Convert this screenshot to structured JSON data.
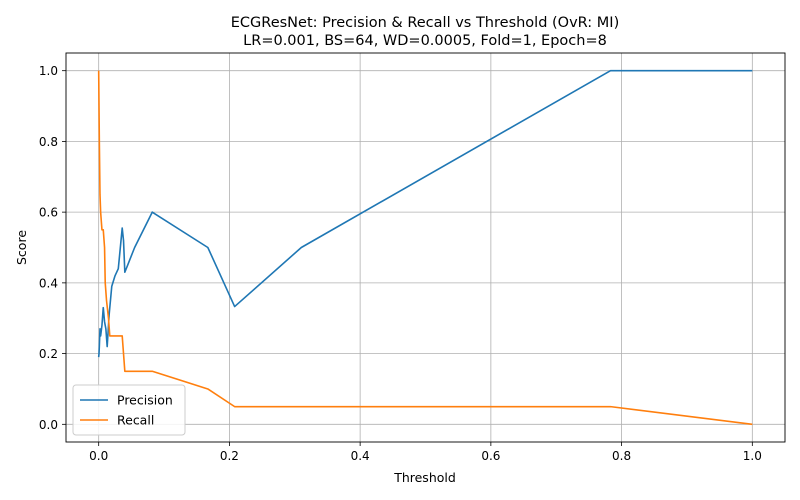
{
  "chart_data": {
    "type": "line",
    "title": "ECGResNet: Precision & Recall vs Threshold (OvR: MI)",
    "subtitle": "LR=0.001, BS=64, WD=0.0005, Fold=1, Epoch=8",
    "xlabel": "Threshold",
    "ylabel": "Score",
    "xlim": [
      -0.05,
      1.05
    ],
    "ylim": [
      -0.05,
      1.05
    ],
    "xticks": [
      0.0,
      0.2,
      0.4,
      0.6,
      0.8,
      1.0
    ],
    "xtick_labels": [
      "0.0",
      "0.2",
      "0.4",
      "0.6",
      "0.8",
      "1.0"
    ],
    "yticks": [
      0.0,
      0.2,
      0.4,
      0.6,
      0.8,
      1.0
    ],
    "ytick_labels": [
      "0.0",
      "0.2",
      "0.4",
      "0.6",
      "0.8",
      "1.0"
    ],
    "grid": true,
    "legend_position": "lower-left",
    "series": [
      {
        "name": "Precision",
        "color": "#1f77b4",
        "points": [
          [
            0.0,
            0.19
          ],
          [
            0.0005,
            0.2
          ],
          [
            0.001,
            0.22
          ],
          [
            0.002,
            0.27
          ],
          [
            0.003,
            0.25
          ],
          [
            0.005,
            0.28
          ],
          [
            0.007,
            0.33
          ],
          [
            0.009,
            0.29
          ],
          [
            0.011,
            0.27
          ],
          [
            0.013,
            0.22
          ],
          [
            0.016,
            0.31
          ],
          [
            0.02,
            0.39
          ],
          [
            0.025,
            0.42
          ],
          [
            0.03,
            0.44
          ],
          [
            0.036,
            0.555
          ],
          [
            0.038,
            0.52
          ],
          [
            0.04,
            0.43
          ],
          [
            0.055,
            0.5
          ],
          [
            0.082,
            0.6
          ],
          [
            0.167,
            0.5
          ],
          [
            0.208,
            0.333
          ],
          [
            0.31,
            0.5
          ],
          [
            0.783,
            1.0
          ],
          [
            1.0,
            1.0
          ]
        ]
      },
      {
        "name": "Recall",
        "color": "#ff7f0e",
        "points": [
          [
            0.0,
            1.0
          ],
          [
            0.0005,
            0.9
          ],
          [
            0.001,
            0.8
          ],
          [
            0.002,
            0.65
          ],
          [
            0.003,
            0.6
          ],
          [
            0.005,
            0.55
          ],
          [
            0.007,
            0.55
          ],
          [
            0.009,
            0.5
          ],
          [
            0.01,
            0.4
          ],
          [
            0.012,
            0.35
          ],
          [
            0.015,
            0.3
          ],
          [
            0.017,
            0.25
          ],
          [
            0.036,
            0.25
          ],
          [
            0.04,
            0.15
          ],
          [
            0.082,
            0.15
          ],
          [
            0.167,
            0.1
          ],
          [
            0.208,
            0.05
          ],
          [
            0.783,
            0.05
          ],
          [
            1.0,
            0.0
          ]
        ]
      }
    ]
  }
}
